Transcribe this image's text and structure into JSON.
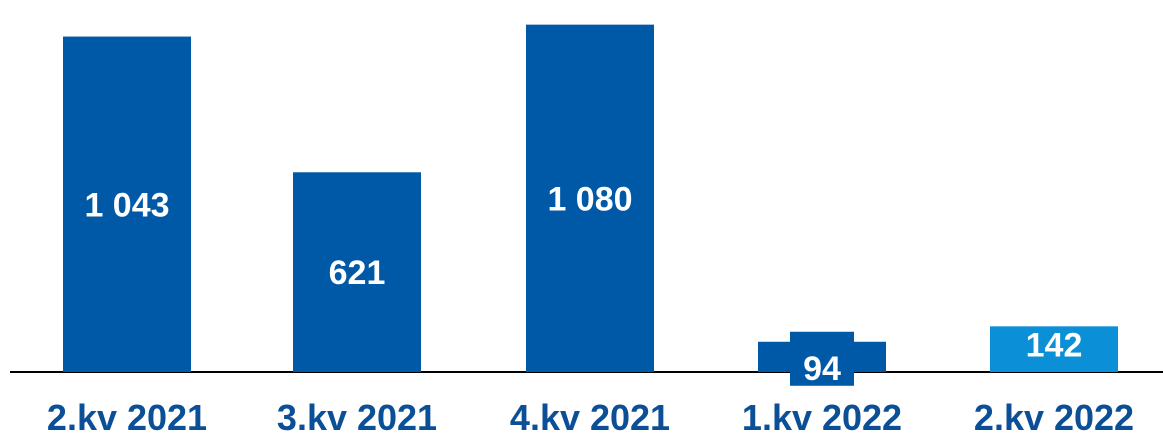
{
  "chart_data": {
    "type": "bar",
    "categories": [
      "2.kv 2021",
      "3.kv 2021",
      "4.kv 2021",
      "1.kv 2022",
      "2.kv 2022"
    ],
    "values": [
      1043,
      621,
      1080,
      94,
      142
    ],
    "data_labels": [
      "1 043",
      "621",
      "1 080",
      "94",
      "142"
    ],
    "ylim": [
      0,
      1110
    ],
    "grid": false,
    "legend": "none",
    "colors": {
      "bar": "#0059a6",
      "highlight": "#0b8fd6",
      "label": "#0b4f97",
      "axis": "#000000"
    },
    "highlight_index": 4
  }
}
